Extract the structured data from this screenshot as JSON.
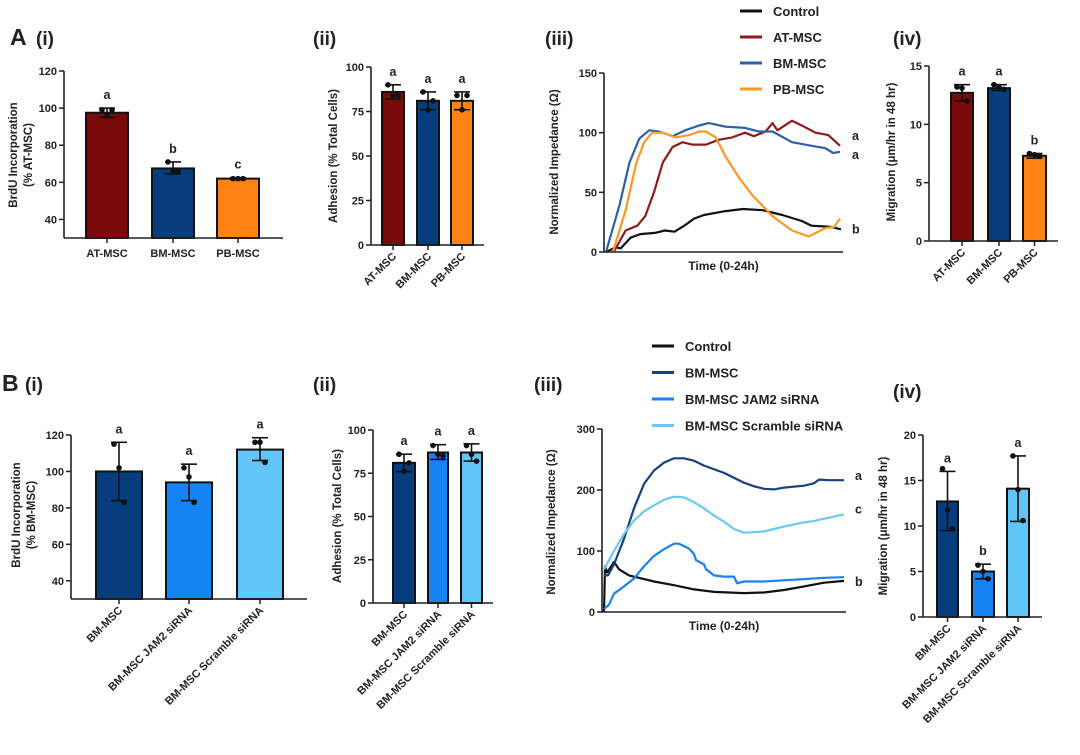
{
  "panels": {
    "A_letter": "A",
    "A_i": "(i)",
    "A_ii": "(ii)",
    "A_iii": "(iii)",
    "A_iv": "(iv)",
    "B_letter": "B",
    "B_i": "(i)",
    "B_ii": "(ii)",
    "B_iii": "(iii)",
    "B_iv": "(iv)"
  },
  "colors": {
    "AT-MSC": "#7a0a0a",
    "BM-MSC": "#083d7d",
    "PB-MSC": "#ff8214",
    "BM-MSC JAM2 siRNA": "#1683f5",
    "BM-MSC Scramble siRNA": "#62c5f7",
    "Control": "#111111"
  },
  "chart_data": [
    {
      "id": "A-i",
      "type": "bar",
      "categories": [
        "AT-MSC",
        "BM-MSC",
        "PB-MSC"
      ],
      "values": [
        97.5,
        67.5,
        62
      ],
      "error": [
        [
          95,
          100
        ],
        [
          64.5,
          71
        ],
        [
          61.5,
          62.5
        ]
      ],
      "points": [
        [
          99,
          96,
          99
        ],
        [
          71,
          66,
          66
        ],
        [
          62,
          62,
          62
        ]
      ],
      "letters": [
        "a",
        "b",
        "c"
      ],
      "bar_colors": [
        "#7a0a0a",
        "#083d7d",
        "#ff8214"
      ],
      "ylabel": [
        "BrdU Incorporation",
        "(% AT-MSC)"
      ],
      "ylim": [
        30,
        120
      ],
      "yticks": [
        40,
        60,
        80,
        100,
        120
      ]
    },
    {
      "id": "A-ii",
      "type": "bar",
      "categories": [
        "AT-MSC",
        "BM-MSC",
        "PB-MSC"
      ],
      "values": [
        86,
        81,
        81
      ],
      "error": [
        [
          82,
          90
        ],
        [
          76,
          86
        ],
        [
          76,
          86
        ]
      ],
      "points": [
        [
          90,
          84,
          84
        ],
        [
          86,
          76,
          81
        ],
        [
          84,
          76,
          84
        ]
      ],
      "letters": [
        "a",
        "a",
        "a"
      ],
      "bar_colors": [
        "#7a0a0a",
        "#083d7d",
        "#ff8214"
      ],
      "ylabel": [
        "Adhesion (% Total Cells)"
      ],
      "ylim": [
        0,
        100
      ],
      "yticks": [
        0,
        25,
        50,
        75,
        100
      ]
    },
    {
      "id": "A-iii",
      "type": "line",
      "xlabel": "Time (0-24h)",
      "ylabel": [
        "Normalized Impedance  (Ω)"
      ],
      "xlim": [
        0,
        24
      ],
      "ylim": [
        0,
        150
      ],
      "yticks": [
        0,
        50,
        100,
        150
      ],
      "legend_position": "top",
      "series": [
        {
          "name": "Control",
          "color": "#111111",
          "letter": "b",
          "x": [
            0,
            1,
            1.5,
            2.5,
            3.5,
            5,
            6,
            7,
            8,
            9,
            10,
            12,
            14,
            16,
            18,
            20,
            21,
            23,
            24
          ],
          "y": [
            0,
            4,
            3,
            12,
            15,
            16,
            18,
            17,
            22,
            28,
            31,
            34,
            36,
            35,
            31,
            26,
            22,
            21,
            19
          ]
        },
        {
          "name": "AT-MSC",
          "color": "#8c1c1c",
          "letter": "a",
          "x": [
            0.8,
            2,
            3.2,
            4,
            4.9,
            5.8,
            6.8,
            7.8,
            8.8,
            10.2,
            11.5,
            12.9,
            14.2,
            15.1,
            16.3,
            17,
            17.5,
            19,
            20,
            21.4,
            22.7,
            23.9
          ],
          "y": [
            0,
            18,
            22,
            30,
            50,
            75,
            88,
            92,
            90,
            90,
            94,
            96,
            100,
            97,
            101,
            108,
            102,
            110,
            106,
            100,
            98,
            89
          ]
        },
        {
          "name": "BM-MSC",
          "color": "#2e5fa8",
          "letter": "a",
          "x": [
            0,
            1.4,
            2.4,
            3.4,
            4.4,
            5.4,
            6.8,
            8.1,
            9.5,
            10.5,
            12.2,
            14.2,
            15.6,
            17,
            19,
            21,
            22.4,
            23.2,
            23.9
          ],
          "y": [
            0,
            40,
            75,
            95,
            102,
            101,
            97,
            102,
            106,
            108,
            105,
            104,
            101,
            101,
            92,
            89,
            87,
            83,
            84
          ]
        },
        {
          "name": "PB-MSC",
          "color": "#ff9726",
          "letter": "",
          "x": [
            0.7,
            2,
            3.1,
            3.9,
            4.7,
            5.8,
            7.1,
            8.5,
            9.5,
            10.2,
            11.2,
            12.2,
            13.6,
            14.9,
            17,
            19,
            20.7,
            22.4,
            23.3,
            23.9
          ],
          "y": [
            0,
            35,
            75,
            92,
            100,
            100,
            96,
            98,
            101,
            101,
            96,
            80,
            62,
            48,
            30,
            18,
            13,
            20,
            21,
            28
          ]
        }
      ]
    },
    {
      "id": "A-iv",
      "type": "bar",
      "categories": [
        "AT-MSC",
        "BM-MSC",
        "PB-MSC"
      ],
      "values": [
        12.7,
        13.1,
        7.3
      ],
      "error": [
        [
          12.0,
          13.4
        ],
        [
          12.9,
          13.4
        ],
        [
          7.1,
          7.5
        ]
      ],
      "points": [
        [
          13.2,
          13.1,
          12.0
        ],
        [
          13.4,
          13.2,
          13.0
        ],
        [
          7.5,
          7.4,
          7.3
        ]
      ],
      "letters": [
        "a",
        "a",
        "b"
      ],
      "bar_colors": [
        "#7a0a0a",
        "#083d7d",
        "#ff8214"
      ],
      "ylabel": [
        "Migration (μm/hr in 48 hr)"
      ],
      "ylim": [
        0,
        15
      ],
      "yticks": [
        0,
        5,
        10,
        15
      ]
    },
    {
      "id": "B-i",
      "type": "bar",
      "categories": [
        "BM-MSC",
        "BM-MSC JAM2 siRNA",
        "BM-MSC Scramble siRNA"
      ],
      "values": [
        100,
        94,
        112
      ],
      "error": [
        [
          84,
          116
        ],
        [
          84,
          104
        ],
        [
          106,
          118.5
        ]
      ],
      "points": [
        [
          115,
          102,
          83
        ],
        [
          102,
          97,
          83
        ],
        [
          116,
          116,
          105
        ]
      ],
      "letters": [
        "a",
        "a",
        "a"
      ],
      "bar_colors": [
        "#083d7d",
        "#1683f5",
        "#62c5f7"
      ],
      "ylabel": [
        "BrdU Incorporation",
        "(% BM-MSC)"
      ],
      "ylim": [
        30,
        120
      ],
      "yticks": [
        40,
        60,
        80,
        100,
        120
      ]
    },
    {
      "id": "B-ii",
      "type": "bar",
      "categories": [
        "BM-MSC",
        "BM-MSC JAM2 siRNA",
        "BM-MSC Scramble siRNA"
      ],
      "values": [
        81,
        87,
        87
      ],
      "error": [
        [
          76,
          86
        ],
        [
          83,
          91.5
        ],
        [
          82,
          92
        ]
      ],
      "points": [
        [
          86,
          76,
          81
        ],
        [
          91,
          86,
          85
        ],
        [
          91,
          86,
          82
        ]
      ],
      "letters": [
        "a",
        "a",
        "a"
      ],
      "bar_colors": [
        "#083d7d",
        "#1683f5",
        "#62c5f7"
      ],
      "ylabel": [
        "Adhesion (% Total Cells)"
      ],
      "ylim": [
        0,
        100
      ],
      "yticks": [
        0,
        25,
        50,
        75,
        100
      ]
    },
    {
      "id": "B-iii",
      "type": "line",
      "xlabel": "Time (0-24h)",
      "ylabel": [
        "Normalized Impedance  (Ω)"
      ],
      "xlim": [
        0,
        24
      ],
      "ylim": [
        0,
        300
      ],
      "yticks": [
        0,
        100,
        200,
        300
      ],
      "legend_position": "top",
      "series": [
        {
          "name": "Control",
          "color": "#111111",
          "letter": "",
          "x": [
            0,
            0.1,
            0.3,
            0.6,
            1,
            1.5,
            2.5,
            5,
            7,
            9,
            11,
            14,
            16,
            18,
            20,
            22,
            24
          ],
          "y": [
            0,
            75,
            65,
            72,
            82,
            70,
            60,
            50,
            44,
            37,
            33,
            31,
            32,
            36,
            42,
            48,
            51
          ]
        },
        {
          "name": "BM-MSC",
          "color": "#17417f",
          "letter": "a",
          "x": [
            0,
            0.4,
            1,
            2,
            3,
            4,
            5,
            6,
            7,
            8,
            9,
            10,
            12,
            14,
            15,
            16,
            17,
            18,
            20,
            21,
            21.5,
            22.5,
            24
          ],
          "y": [
            60,
            60,
            78,
            120,
            170,
            210,
            232,
            245,
            252,
            252,
            248,
            240,
            228,
            212,
            206,
            202,
            201,
            204,
            207,
            211,
            217,
            216,
            216
          ]
        },
        {
          "name": "BM-MSC JAM2 siRNA",
          "color": "#1b80f0",
          "letter": "b",
          "x": [
            0,
            0.5,
            1,
            2,
            3,
            4,
            5,
            6,
            7,
            7.5,
            8,
            8.5,
            9,
            9.2,
            10,
            10.2,
            11,
            12,
            13,
            13.3,
            14,
            16,
            18,
            20,
            22,
            24
          ],
          "y": [
            5,
            12,
            30,
            42,
            55,
            75,
            92,
            103,
            112,
            112,
            108,
            104,
            95,
            85,
            78,
            70,
            60,
            58,
            58,
            47,
            50,
            50,
            52,
            54,
            56,
            57
          ]
        },
        {
          "name": "BM-MSC Scramble siRNA",
          "color": "#6cc8f5",
          "letter": "c",
          "x": [
            0,
            1,
            2,
            3,
            4,
            5,
            6,
            7,
            8,
            9,
            10,
            11,
            12,
            13,
            14,
            15,
            16,
            17,
            18,
            20,
            21,
            22,
            24
          ],
          "y": [
            70,
            100,
            128,
            150,
            165,
            175,
            184,
            189,
            188,
            180,
            170,
            158,
            148,
            136,
            130,
            131,
            132,
            136,
            140,
            147,
            149,
            153,
            160
          ]
        }
      ]
    },
    {
      "id": "B-iv",
      "type": "bar",
      "categories": [
        "BM-MSC",
        "BM-MSC JAM2 siRNA",
        "BM-MSC Scramble siRNA"
      ],
      "values": [
        12.7,
        5.0,
        14.1
      ],
      "error": [
        [
          9.5,
          16
        ],
        [
          4.2,
          5.8
        ],
        [
          10.5,
          17.7
        ]
      ],
      "points": [
        [
          16.3,
          11.8,
          9.7
        ],
        [
          5.7,
          5.0,
          4.2
        ],
        [
          17.7,
          14.0,
          10.6
        ]
      ],
      "letters": [
        "a",
        "b",
        "a"
      ],
      "bar_colors": [
        "#083d7d",
        "#1683f5",
        "#62c5f7"
      ],
      "ylabel": [
        "Migration (μm/hr in 48 hr)"
      ],
      "ylim": [
        0,
        20
      ],
      "yticks": [
        0,
        5,
        10,
        15,
        20
      ]
    }
  ]
}
